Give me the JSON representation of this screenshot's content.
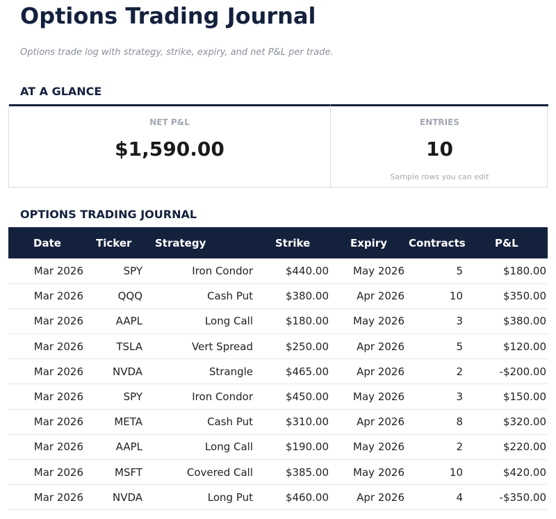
{
  "title": "Options Trading Journal",
  "subtitle": "Options trade log with strategy, strike, expiry, and net P&L per trade.",
  "glance": {
    "heading": "AT A GLANCE",
    "cards": [
      {
        "label": "NET P&L",
        "value": "$1,590.00"
      },
      {
        "label": "ENTRIES",
        "value": "10",
        "note": "Sample rows you can edit"
      }
    ]
  },
  "journal": {
    "heading": "OPTIONS TRADING JOURNAL",
    "columns": [
      "Date",
      "Ticker",
      "Strategy",
      "Strike",
      "Expiry",
      "Contracts",
      "P&L"
    ],
    "rows": [
      [
        "Mar 2026",
        "SPY",
        "Iron Condor",
        "$440.00",
        "May 2026",
        "5",
        "$180.00"
      ],
      [
        "Mar 2026",
        "QQQ",
        "Cash Put",
        "$380.00",
        "Apr 2026",
        "10",
        "$350.00"
      ],
      [
        "Mar 2026",
        "AAPL",
        "Long Call",
        "$180.00",
        "May 2026",
        "3",
        "$380.00"
      ],
      [
        "Mar 2026",
        "TSLA",
        "Vert Spread",
        "$250.00",
        "Apr 2026",
        "5",
        "$120.00"
      ],
      [
        "Mar 2026",
        "NVDA",
        "Strangle",
        "$465.00",
        "Apr 2026",
        "2",
        "-$200.00"
      ],
      [
        "Mar 2026",
        "SPY",
        "Iron Condor",
        "$450.00",
        "May 2026",
        "3",
        "$150.00"
      ],
      [
        "Mar 2026",
        "META",
        "Cash Put",
        "$310.00",
        "Apr 2026",
        "8",
        "$320.00"
      ],
      [
        "Mar 2026",
        "AAPL",
        "Long Call",
        "$190.00",
        "May 2026",
        "2",
        "$220.00"
      ],
      [
        "Mar 2026",
        "MSFT",
        "Covered Call",
        "$385.00",
        "May 2026",
        "10",
        "$420.00"
      ],
      [
        "Mar 2026",
        "NVDA",
        "Long Put",
        "$460.00",
        "Apr 2026",
        "4",
        "-$350.00"
      ]
    ]
  },
  "colors": {
    "navy": "#14213d"
  }
}
